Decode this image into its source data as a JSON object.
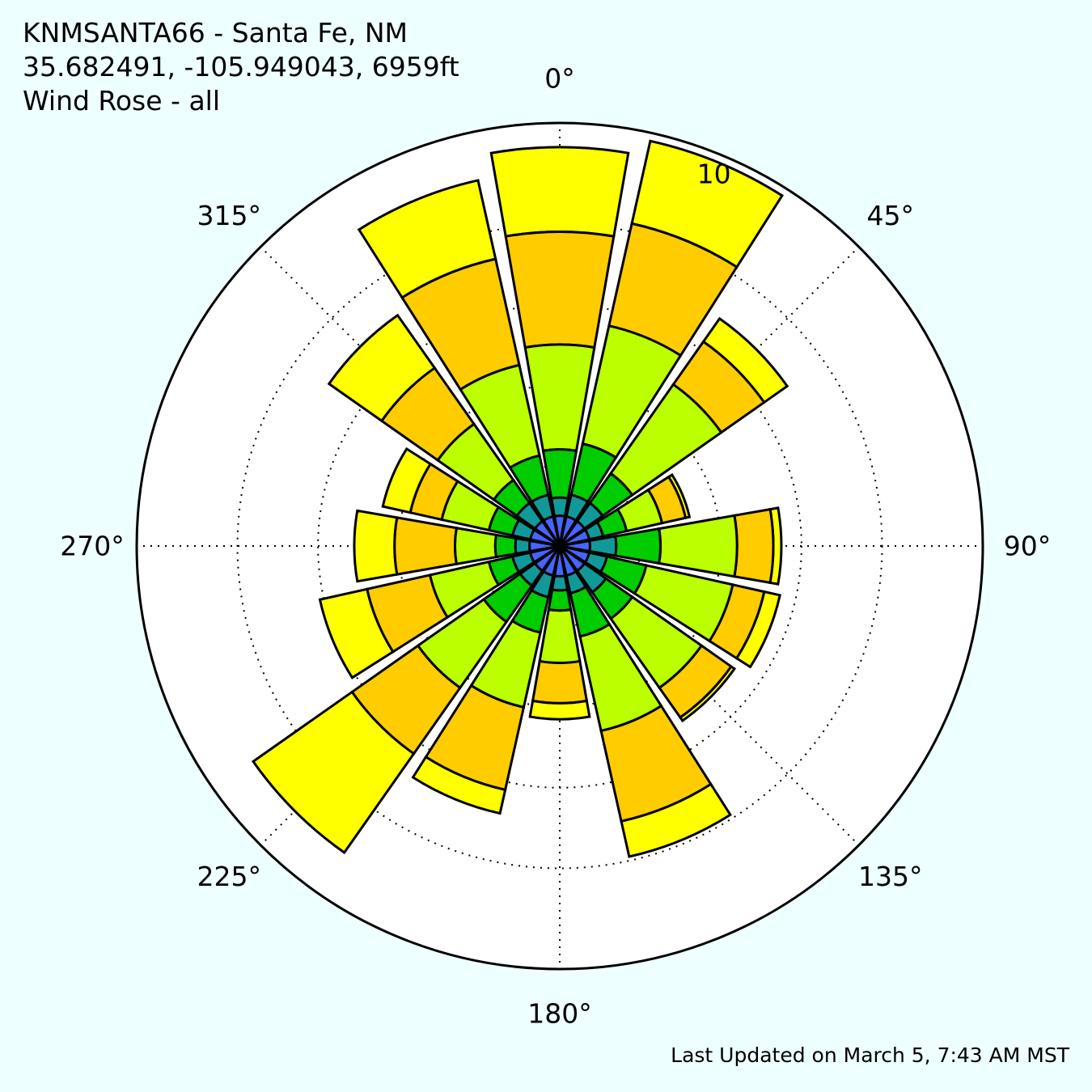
{
  "header": {
    "station": "KNMSANTA66 - Santa Fe, NM",
    "coords": "35.682491, -105.949043, 6959ft",
    "title": "Wind Rose - all"
  },
  "footer": {
    "updated": "Last Updated on March 5, 7:43 AM MST"
  },
  "chart_data": {
    "type": "windrose",
    "title": "Wind Rose - all",
    "angle_tick_labels": [
      "0°",
      "45°",
      "90°",
      "135°",
      "180°",
      "225°",
      "270°",
      "315°"
    ],
    "radial_tick_label": "10",
    "radial_tick_value": 10,
    "rmax": 10.5,
    "radial_gridlines": [
      2,
      4,
      6,
      8
    ],
    "grid": true,
    "direction_bins_deg": [
      0,
      22.5,
      45,
      67.5,
      90,
      112.5,
      135,
      157.5,
      180,
      202.5,
      225,
      247.5,
      270,
      292.5,
      315,
      337.5
    ],
    "speed_class_colors": [
      "#4466ff",
      "#119999",
      "#00cc00",
      "#bbff00",
      "#ffcc00",
      "#ffff00"
    ],
    "cumulative_radii": [
      [
        0.75,
        1.2,
        2.4,
        5.0,
        7.8,
        9.9
      ],
      [
        0.75,
        1.3,
        2.6,
        5.6,
        8.2,
        10.3
      ],
      [
        0.75,
        1.3,
        2.2,
        4.9,
        6.2,
        6.9
      ],
      [
        0.75,
        1.1,
        1.7,
        2.6,
        3.2,
        3.3
      ],
      [
        0.75,
        1.4,
        2.5,
        4.4,
        5.3,
        5.5
      ],
      [
        0.75,
        1.2,
        2.2,
        4.4,
        5.2,
        5.6
      ],
      [
        0.75,
        1.4,
        2.2,
        4.3,
        5.2,
        5.3
      ],
      [
        0.75,
        1.2,
        2.3,
        4.7,
        7.0,
        7.9
      ],
      [
        0.75,
        1.1,
        1.6,
        2.9,
        3.9,
        4.3
      ],
      [
        0.75,
        1.3,
        2.2,
        4.1,
        6.2,
        6.8
      ],
      [
        0.75,
        1.2,
        2.3,
        4.3,
        6.3,
        9.3
      ],
      [
        0.75,
        1.2,
        1.8,
        3.3,
        4.9,
        6.1
      ],
      [
        0.75,
        1.1,
        1.6,
        2.6,
        4.1,
        5.1
      ],
      [
        0.75,
        1.2,
        1.8,
        3.0,
        3.8,
        4.5
      ],
      [
        0.75,
        1.3,
        2.0,
        3.7,
        5.4,
        7.0
      ],
      [
        0.75,
        1.3,
        2.3,
        4.6,
        7.3,
        9.3
      ]
    ]
  }
}
